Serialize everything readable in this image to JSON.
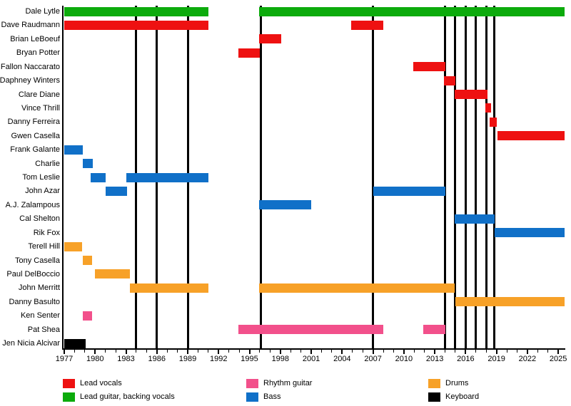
{
  "chart_data": {
    "type": "bar",
    "subtype": "band-member-gantt-timeline",
    "x_axis": {
      "unit": "year",
      "min": 1977,
      "max": 2025,
      "label_step": 3,
      "tick_step": 1,
      "tick_labels": [
        "1977",
        "1980",
        "1983",
        "1986",
        "1989",
        "1992",
        "1995",
        "1998",
        "2001",
        "2004",
        "2007",
        "2010",
        "2013",
        "2016",
        "2019",
        "2022",
        "2025"
      ]
    },
    "present_end": 2025.6,
    "event_lines_years": [
      1984,
      1986,
      1989,
      1996.1,
      2007,
      2014,
      2015,
      2016,
      2017,
      2018,
      2018.8
    ],
    "roles": {
      "lead_vocals": {
        "label": "Lead vocals",
        "color": "#ee1111"
      },
      "lead_guitar_backing_vocals": {
        "label": "Lead guitar, backing vocals",
        "color": "#0cab0c"
      },
      "rhythm_guitar": {
        "label": "Rhythm guitar",
        "color": "#f2508b"
      },
      "bass": {
        "label": "Bass",
        "color": "#1070c8"
      },
      "drums": {
        "label": "Drums",
        "color": "#f7a128"
      },
      "keyboard": {
        "label": "Keyboard",
        "color": "#000000"
      }
    },
    "members": [
      {
        "name": "Dale Lytle",
        "role": "lead_guitar_backing_vocals",
        "periods": [
          [
            1977,
            1991
          ],
          [
            1995.9,
            "present"
          ]
        ]
      },
      {
        "name": "Dave Raudmann",
        "role": "lead_vocals",
        "periods": [
          [
            1977,
            1991
          ],
          [
            2004.9,
            2008
          ]
        ]
      },
      {
        "name": "Brian LeBoeuf",
        "role": "lead_vocals",
        "periods": [
          [
            1995.9,
            1998.1
          ]
        ]
      },
      {
        "name": "Bryan Potter",
        "role": "lead_vocals",
        "periods": [
          [
            1993.9,
            1996
          ]
        ]
      },
      {
        "name": "Fallon Naccarato",
        "role": "lead_vocals",
        "periods": [
          [
            2010.9,
            2014
          ]
        ]
      },
      {
        "name": "Daphney Winters",
        "role": "lead_vocals",
        "periods": [
          [
            2013.9,
            2015
          ]
        ]
      },
      {
        "name": "Clare Diane",
        "role": "lead_vocals",
        "periods": [
          [
            2014.9,
            2018.1
          ]
        ]
      },
      {
        "name": "Vince Thrill",
        "role": "lead_vocals",
        "periods": [
          [
            2017.9,
            2018.5
          ]
        ]
      },
      {
        "name": "Danny Ferreira",
        "role": "lead_vocals",
        "periods": [
          [
            2018.3,
            2019
          ]
        ]
      },
      {
        "name": "Gwen Casella",
        "role": "lead_vocals",
        "periods": [
          [
            2019.1,
            "present"
          ]
        ]
      },
      {
        "name": "Frank Galante",
        "role": "bass",
        "periods": [
          [
            1977,
            1978.8
          ]
        ]
      },
      {
        "name": "Charlie",
        "role": "bass",
        "periods": [
          [
            1978.8,
            1979.8
          ]
        ]
      },
      {
        "name": "Tom Leslie",
        "role": "bass",
        "periods": [
          [
            1979.6,
            1981
          ],
          [
            1983,
            1991
          ]
        ]
      },
      {
        "name": "John Azar",
        "role": "bass",
        "periods": [
          [
            1981,
            1983.1
          ],
          [
            2007,
            2014
          ]
        ]
      },
      {
        "name": "A.J. Zalampous",
        "role": "bass",
        "periods": [
          [
            1995.9,
            2001
          ]
        ]
      },
      {
        "name": "Cal Shelton",
        "role": "bass",
        "periods": [
          [
            2014.9,
            2018.8
          ]
        ]
      },
      {
        "name": "Rik Fox",
        "role": "bass",
        "periods": [
          [
            2018.8,
            "present"
          ]
        ]
      },
      {
        "name": "Terell Hill",
        "role": "drums",
        "periods": [
          [
            1977,
            1978.7
          ]
        ]
      },
      {
        "name": "Tony Casella",
        "role": "drums",
        "periods": [
          [
            1978.8,
            1979.7
          ]
        ]
      },
      {
        "name": "Paul DelBoccio",
        "role": "drums",
        "periods": [
          [
            1980,
            1983.4
          ]
        ]
      },
      {
        "name": "John Merritt",
        "role": "drums",
        "periods": [
          [
            1983.4,
            1991
          ],
          [
            1995.9,
            2014.9
          ]
        ]
      },
      {
        "name": "Danny Basulto",
        "role": "drums",
        "periods": [
          [
            2015,
            "present"
          ]
        ]
      },
      {
        "name": "Ken Senter",
        "role": "rhythm_guitar",
        "periods": [
          [
            1978.8,
            1979.7
          ]
        ]
      },
      {
        "name": "Pat Shea",
        "role": "rhythm_guitar",
        "periods": [
          [
            1993.9,
            2008
          ],
          [
            2011.9,
            2014
          ]
        ]
      },
      {
        "name": "Jen Nicia Alcivar",
        "role": "keyboard",
        "periods": [
          [
            1977,
            1979.1
          ]
        ]
      }
    ]
  },
  "legend": {
    "columns": [
      [
        "lead_vocals",
        "lead_guitar_backing_vocals"
      ],
      [
        "rhythm_guitar",
        "bass"
      ],
      [
        "drums",
        "keyboard"
      ]
    ]
  }
}
